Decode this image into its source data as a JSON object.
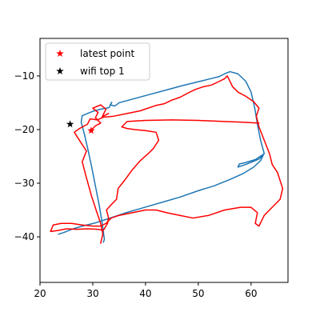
{
  "chart_data": {
    "type": "line",
    "xlim": [
      20,
      67
    ],
    "ylim": [
      -48.5,
      -3
    ],
    "xticks": [
      20,
      30,
      40,
      50,
      60
    ],
    "yticks": [
      -10,
      -20,
      -30,
      -40
    ],
    "grid": false,
    "legend_placement": "upper-left",
    "series": [
      {
        "kind": "line",
        "color": "#1f77b4",
        "points": [
          [
            23.5,
            -39.5
          ],
          [
            24.5,
            -39.2
          ],
          [
            26.0,
            -38.6
          ],
          [
            28.0,
            -38.0
          ],
          [
            30.5,
            -37.4
          ],
          [
            33.0,
            -36.6
          ],
          [
            36.0,
            -35.6
          ],
          [
            39.5,
            -34.6
          ],
          [
            43.0,
            -33.6
          ],
          [
            46.5,
            -32.6
          ],
          [
            50.0,
            -31.4
          ],
          [
            53.0,
            -30.5
          ],
          [
            56.0,
            -29.3
          ],
          [
            58.5,
            -28.2
          ],
          [
            60.5,
            -27.0
          ],
          [
            61.8,
            -25.8
          ],
          [
            62.3,
            -24.8
          ],
          [
            61.5,
            -25.5
          ],
          [
            59.0,
            -26.5
          ],
          [
            57.5,
            -27.0
          ],
          [
            57.8,
            -26.4
          ],
          [
            58.8,
            -26.2
          ],
          [
            60.8,
            -25.6
          ],
          [
            62.5,
            -24.5
          ],
          [
            61.8,
            -22.0
          ],
          [
            61.2,
            -19.0
          ],
          [
            60.7,
            -16.0
          ],
          [
            60.0,
            -13.0
          ],
          [
            59.0,
            -11.0
          ],
          [
            57.5,
            -9.6
          ],
          [
            56.0,
            -9.2
          ],
          [
            55.0,
            -9.6
          ],
          [
            54.0,
            -10.1
          ],
          [
            52.0,
            -10.6
          ],
          [
            49.5,
            -11.2
          ],
          [
            47.0,
            -11.8
          ],
          [
            44.0,
            -12.6
          ],
          [
            41.0,
            -13.4
          ],
          [
            38.0,
            -14.2
          ],
          [
            35.0,
            -15.0
          ],
          [
            34.2,
            -15.6
          ],
          [
            33.3,
            -15.4
          ],
          [
            33.6,
            -14.9
          ],
          [
            33.1,
            -15.9
          ],
          [
            31.5,
            -16.2
          ],
          [
            30.0,
            -16.6
          ],
          [
            28.0,
            -17.4
          ],
          [
            27.8,
            -18.6
          ],
          [
            28.4,
            -20.8
          ],
          [
            29.1,
            -23.8
          ],
          [
            29.8,
            -27.0
          ],
          [
            30.5,
            -30.5
          ],
          [
            31.2,
            -34.0
          ],
          [
            31.8,
            -37.5
          ],
          [
            32.2,
            -40.5
          ],
          [
            32.0,
            -41.0
          ]
        ]
      },
      {
        "kind": "line",
        "color": "#ff0000",
        "points": [
          [
            31.5,
            -41.2
          ],
          [
            31.9,
            -39.5
          ],
          [
            31.5,
            -37.5
          ],
          [
            30.8,
            -35.5
          ],
          [
            29.8,
            -32.5
          ],
          [
            28.8,
            -29.0
          ],
          [
            28.0,
            -26.0
          ],
          [
            28.8,
            -24.0
          ],
          [
            27.8,
            -22.5
          ],
          [
            26.5,
            -20.5
          ],
          [
            27.5,
            -19.8
          ],
          [
            29.0,
            -19.0
          ],
          [
            29.5,
            -18.0
          ],
          [
            30.8,
            -18.2
          ],
          [
            32.0,
            -17.7
          ],
          [
            34.0,
            -17.5
          ],
          [
            36.5,
            -17.0
          ],
          [
            39.0,
            -16.5
          ],
          [
            40.5,
            -16.0
          ],
          [
            42.0,
            -15.5
          ],
          [
            43.5,
            -15.2
          ],
          [
            45.0,
            -14.5
          ],
          [
            46.5,
            -14.0
          ],
          [
            48.0,
            -13.2
          ],
          [
            49.5,
            -12.5
          ],
          [
            51.0,
            -12.0
          ],
          [
            52.5,
            -11.7
          ],
          [
            54.0,
            -11.0
          ],
          [
            55.0,
            -10.5
          ],
          [
            55.5,
            -10.0
          ],
          [
            56.5,
            -12.0
          ],
          [
            57.5,
            -13.0
          ],
          [
            59.0,
            -13.8
          ],
          [
            60.5,
            -14.8
          ],
          [
            61.5,
            -16.0
          ],
          [
            61.0,
            -17.5
          ],
          [
            61.5,
            -19.5
          ],
          [
            62.5,
            -22.0
          ],
          [
            63.5,
            -24.5
          ],
          [
            64.0,
            -26.5
          ],
          [
            65.0,
            -28.0
          ],
          [
            65.5,
            -29.5
          ],
          [
            66.0,
            -31.0
          ],
          [
            65.5,
            -33.0
          ],
          [
            64.0,
            -34.5
          ],
          [
            62.5,
            -36.0
          ],
          [
            61.5,
            -38.0
          ],
          [
            60.8,
            -37.5
          ],
          [
            61.2,
            -35.5
          ],
          [
            60.0,
            -34.5
          ],
          [
            58.0,
            -34.5
          ],
          [
            55.0,
            -35.0
          ],
          [
            52.0,
            -36.0
          ],
          [
            49.0,
            -36.5
          ],
          [
            46.5,
            -36.0
          ],
          [
            44.0,
            -35.5
          ],
          [
            42.0,
            -35.0
          ],
          [
            40.0,
            -35.0
          ],
          [
            37.5,
            -35.5
          ],
          [
            35.0,
            -36.0
          ],
          [
            33.5,
            -36.5
          ],
          [
            32.5,
            -37.5
          ],
          [
            31.5,
            -38.0
          ],
          [
            30.0,
            -38.0
          ],
          [
            28.0,
            -37.8
          ],
          [
            26.0,
            -37.5
          ],
          [
            24.0,
            -37.5
          ],
          [
            22.5,
            -37.8
          ],
          [
            22.0,
            -39.0
          ],
          [
            23.5,
            -38.8
          ],
          [
            25.0,
            -38.5
          ],
          [
            27.0,
            -38.6
          ],
          [
            29.0,
            -38.5
          ],
          [
            31.0,
            -38.6
          ],
          [
            32.0,
            -38.8
          ],
          [
            32.8,
            -37.5
          ],
          [
            33.0,
            -36.5
          ],
          [
            32.6,
            -35.0
          ],
          [
            33.5,
            -34.0
          ],
          [
            34.5,
            -33.0
          ],
          [
            34.8,
            -31.0
          ],
          [
            36.0,
            -29.5
          ],
          [
            37.5,
            -27.5
          ],
          [
            39.0,
            -25.8
          ],
          [
            40.5,
            -24.5
          ],
          [
            41.5,
            -23.5
          ],
          [
            42.5,
            -22.0
          ],
          [
            42.0,
            -20.5
          ],
          [
            40.0,
            -20.2
          ],
          [
            38.0,
            -20.0
          ],
          [
            36.5,
            -19.8
          ],
          [
            35.5,
            -19.5
          ],
          [
            36.5,
            -18.5
          ],
          [
            40.0,
            -18.3
          ],
          [
            45.0,
            -18.2
          ],
          [
            50.0,
            -18.3
          ],
          [
            55.0,
            -18.5
          ],
          [
            58.0,
            -18.6
          ],
          [
            61.5,
            -18.8
          ]
        ]
      },
      {
        "kind": "line",
        "color": "#ff0000",
        "points": [
          [
            29.5,
            -20.3
          ],
          [
            30.5,
            -19.3
          ],
          [
            31.5,
            -18.8
          ],
          [
            30.5,
            -17.8
          ],
          [
            31.0,
            -16.8
          ],
          [
            30.0,
            -16.0
          ],
          [
            31.5,
            -15.4
          ],
          [
            32.5,
            -16.2
          ],
          [
            31.8,
            -17.6
          ],
          [
            33.0,
            -17.0
          ]
        ]
      },
      {
        "kind": "scatter",
        "name": "latest point",
        "marker": "star",
        "color": "#ff0000",
        "points": [
          [
            29.7,
            -20.2
          ]
        ]
      },
      {
        "kind": "scatter",
        "name": "wifi top 1",
        "marker": "star",
        "color": "#000000",
        "points": [
          [
            25.7,
            -19.0
          ]
        ]
      }
    ]
  }
}
